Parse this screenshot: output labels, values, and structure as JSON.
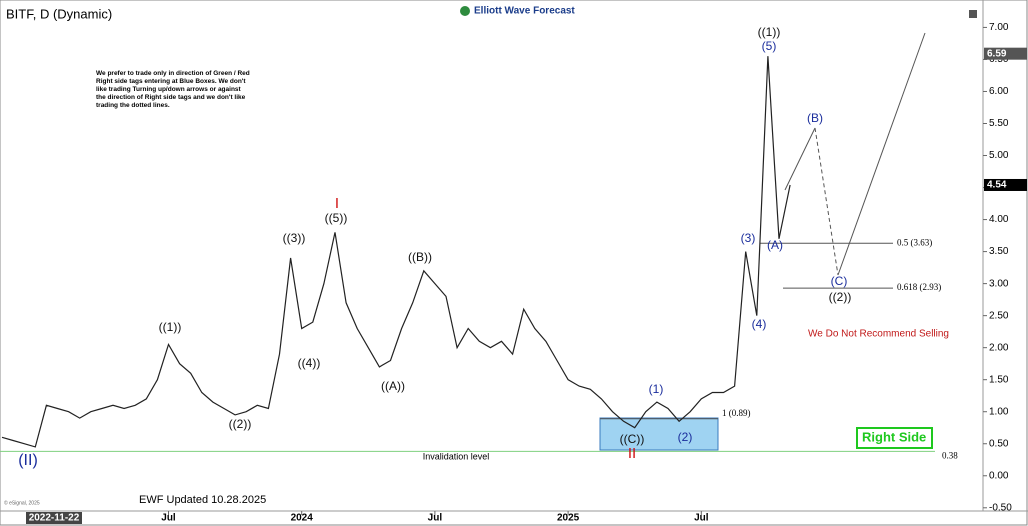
{
  "chart_data": {
    "type": "line",
    "title": "BITF, D (Dynamic)",
    "brand": "Elliott Wave Forecast",
    "note": "We prefer to trade only in direction of Green / Red Right side tags entering at Blue Boxes. We don't like trading Turning up/down arrows or against the direction of Right side tags and we don't like trading the dotted lines.",
    "warning": "We Do Not Recommend Selling",
    "right_side": "Right Side",
    "invalidation_text": "Invalidation level",
    "updated": "EWF Updated 10.28.2025",
    "copyright": "© eSignal, 2025",
    "categories": [
      "2022-11-22",
      null,
      null,
      null,
      null,
      null,
      null,
      null,
      null,
      null,
      null,
      null,
      null,
      null,
      null,
      "Jul",
      null,
      null,
      null,
      null,
      null,
      null,
      null,
      null,
      null,
      null,
      null,
      "2024",
      null,
      null,
      null,
      null,
      null,
      null,
      null,
      null,
      null,
      null,
      null,
      "Jul",
      null,
      null,
      null,
      null,
      null,
      null,
      null,
      null,
      null,
      null,
      null,
      "2025",
      null,
      null,
      null,
      null,
      null,
      null,
      null,
      null,
      null,
      null,
      null,
      "Jul",
      null,
      null,
      null,
      null,
      null,
      null,
      null,
      null
    ],
    "values": [
      0.6,
      0.55,
      0.5,
      0.45,
      1.1,
      1.05,
      1.0,
      0.9,
      1.0,
      1.05,
      1.1,
      1.05,
      1.1,
      1.2,
      1.5,
      2.05,
      1.75,
      1.6,
      1.3,
      1.15,
      1.05,
      0.95,
      1.0,
      1.1,
      1.05,
      1.9,
      3.4,
      2.3,
      2.4,
      3.0,
      3.8,
      2.7,
      2.3,
      2.0,
      1.7,
      1.8,
      2.3,
      2.7,
      3.2,
      3.0,
      2.8,
      2.0,
      2.3,
      2.1,
      2.0,
      2.1,
      1.9,
      2.6,
      2.3,
      2.1,
      1.8,
      1.5,
      1.4,
      1.35,
      1.2,
      1.0,
      0.85,
      0.75,
      1.0,
      1.15,
      1.05,
      0.85,
      1.0,
      1.2,
      1.3,
      1.3,
      1.4,
      3.5,
      2.5,
      6.55,
      3.7,
      4.54
    ],
    "color": "#222222",
    "ylim": [
      -0.55,
      7.35
    ],
    "yticks": [
      {
        "value": 7,
        "label": "7.00"
      },
      {
        "value": 6.5,
        "label": "6.50"
      },
      {
        "value": 6,
        "label": "6.00"
      },
      {
        "value": 5.5,
        "label": "5.50"
      },
      {
        "value": 5,
        "label": "5.00"
      },
      {
        "value": 4.5,
        "label": "4.50"
      },
      {
        "value": 4,
        "label": "4.00"
      },
      {
        "value": 3.5,
        "label": "3.50"
      },
      {
        "value": 3,
        "label": "3.00"
      },
      {
        "value": 2.5,
        "label": "2.50"
      },
      {
        "value": 2,
        "label": "2.00"
      },
      {
        "value": 1.5,
        "label": "1.50"
      },
      {
        "value": 1,
        "label": "1.00"
      },
      {
        "value": 0.5,
        "label": "0.50"
      },
      {
        "value": 0,
        "label": "0.00"
      },
      {
        "value": -0.5,
        "label": "-0.50"
      }
    ],
    "price_markers": [
      6.59,
      4.54
    ],
    "levels": [
      {
        "value": 3.63,
        "label": "0.5 (3.63)",
        "color": "#555555"
      },
      {
        "value": 2.93,
        "label": "0.618 (2.93)",
        "color": "#555555"
      },
      {
        "value": 0.89,
        "label": "1 (0.89)",
        "color": "#555555"
      },
      {
        "value": 0.38,
        "label": "0.38",
        "color": "#7fd07f"
      }
    ],
    "waves": [
      {
        "text": "((1))",
        "color": "#111111"
      },
      {
        "text": "((2))",
        "color": "#111111"
      },
      {
        "text": "((3))",
        "color": "#111111"
      },
      {
        "text": "((4))",
        "color": "#111111"
      },
      {
        "text": "((5))",
        "color": "#111111"
      },
      {
        "text": "I",
        "color": "#d01010"
      },
      {
        "text": "((A))",
        "color": "#111111"
      },
      {
        "text": "((B))",
        "color": "#111111"
      },
      {
        "text": "(1)",
        "color": "#1a2d9c"
      },
      {
        "text": "(2)",
        "color": "#1a2d9c"
      },
      {
        "text": "((C))",
        "color": "#111111"
      },
      {
        "text": "II",
        "color": "#d01010"
      },
      {
        "text": "(3)",
        "color": "#1a2d9c"
      },
      {
        "text": "(4)",
        "color": "#1a2d9c"
      },
      {
        "text": "(5)",
        "color": "#1a2d9c"
      },
      {
        "text": "((1))",
        "color": "#111111"
      },
      {
        "text": "(A)",
        "color": "#1a2d9c"
      },
      {
        "text": "(B)",
        "color": "#1a2d9c"
      },
      {
        "text": "(C)",
        "color": "#1a2d9c"
      },
      {
        "text": "((2))",
        "color": "#111111"
      },
      {
        "text": "(II)",
        "color": "#1a2d9c"
      }
    ]
  }
}
